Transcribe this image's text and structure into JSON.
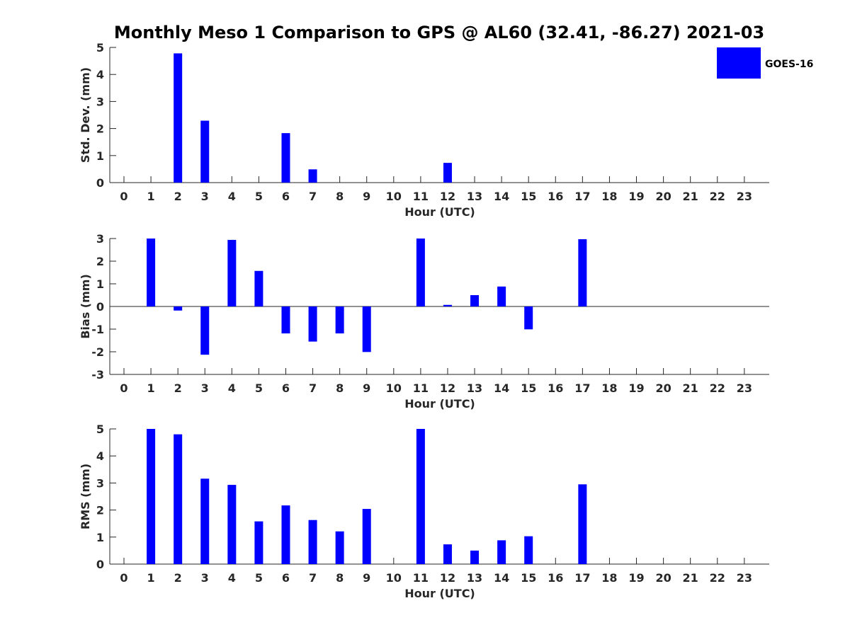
{
  "chart_data": {
    "type": "bar",
    "title": "Monthly Meso 1 Comparison to GPS @ AL60 (32.41, -86.27) 2021-03",
    "legend": {
      "label": "GOES-16",
      "color": "#0000ff",
      "placement": "top-right"
    },
    "categories": [
      "0",
      "1",
      "2",
      "3",
      "4",
      "5",
      "6",
      "7",
      "8",
      "9",
      "10",
      "11",
      "12",
      "13",
      "14",
      "15",
      "16",
      "17",
      "18",
      "19",
      "20",
      "21",
      "22",
      "23"
    ],
    "panels": [
      {
        "id": "std",
        "xlabel": "Hour (UTC)",
        "ylabel": "Std. Dev. (mm)",
        "ylim": [
          0,
          5
        ],
        "yticks": [
          0,
          1,
          2,
          3,
          4,
          5
        ],
        "values": [
          null,
          null,
          4.78,
          2.29,
          null,
          null,
          1.83,
          0.49,
          null,
          null,
          null,
          null,
          0.73,
          null,
          null,
          null,
          null,
          null,
          null,
          null,
          null,
          null,
          null,
          null
        ]
      },
      {
        "id": "bias",
        "xlabel": "Hour (UTC)",
        "ylabel": "Bias (mm)",
        "ylim": [
          -3,
          3
        ],
        "yticks": [
          -3,
          -2,
          -1,
          0,
          1,
          2,
          3
        ],
        "zero_line": true,
        "values": [
          null,
          3.0,
          -0.18,
          -2.13,
          2.94,
          1.57,
          -1.19,
          -1.55,
          -1.19,
          -2.01,
          null,
          3.0,
          0.07,
          0.5,
          0.88,
          -1.01,
          null,
          2.97,
          null,
          null,
          null,
          null,
          null,
          null
        ]
      },
      {
        "id": "rms",
        "xlabel": "Hour (UTC)",
        "ylabel": "RMS (mm)",
        "ylim": [
          0,
          5
        ],
        "yticks": [
          0,
          1,
          2,
          3,
          4,
          5
        ],
        "values": [
          null,
          5.0,
          4.8,
          3.16,
          2.93,
          1.58,
          2.17,
          1.63,
          1.21,
          2.04,
          null,
          5.0,
          0.73,
          0.5,
          0.88,
          1.03,
          null,
          2.95,
          null,
          null,
          null,
          null,
          null,
          null
        ]
      }
    ]
  }
}
